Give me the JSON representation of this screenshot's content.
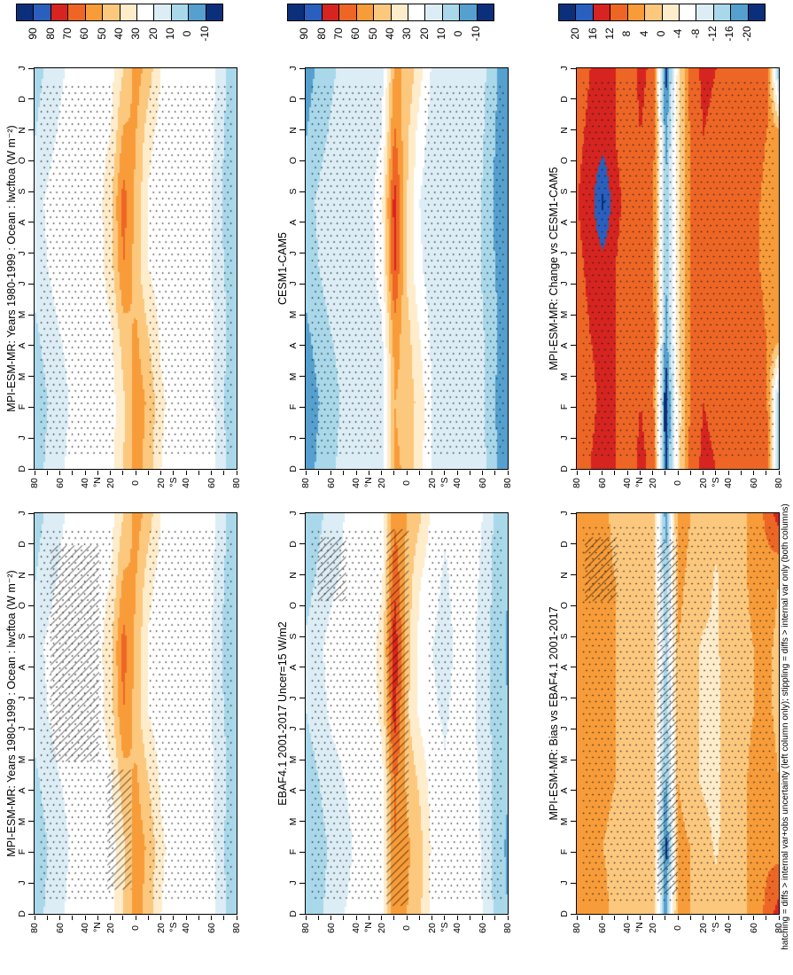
{
  "figure": {
    "caption": "hatching = diffs > internal var+obs uncertainty (left column only); stippling = diffs > internal var only (both columns)",
    "background_color": "#ffffff"
  },
  "axes": {
    "months_bottom_to_top": [
      "D",
      "J",
      "F",
      "M",
      "A",
      "M",
      "J",
      "J",
      "A",
      "S",
      "O",
      "N",
      "D",
      "J"
    ],
    "lat_tick_labels": [
      "80",
      "60",
      "40",
      "20",
      "0",
      "20",
      "40",
      "60",
      "80"
    ],
    "lat_unit_north": "°N",
    "lat_unit_south": "°S"
  },
  "chart_data": {
    "type": "heatmap",
    "description": "Zonal-mean annual cycle (month vs latitude, rotated page) of TOA longwave cloud forcing over ocean; filled contours with stippling/hatching significance overlays",
    "palette_colors": [
      "#0b2f7a",
      "#2a5fbe",
      "#d62420",
      "#ee6625",
      "#f79c39",
      "#fbc87e",
      "#feeccb",
      "#ffffff",
      "#ddedf5",
      "#a9d8ea",
      "#55a0cf",
      "#0b2f7a"
    ],
    "colorbars": [
      {
        "levels": [
          90,
          80,
          70,
          60,
          50,
          40,
          30,
          20,
          10,
          0,
          -10
        ],
        "level_labels": [
          "90",
          "80",
          "70",
          "60",
          "50",
          "40",
          "30",
          "20",
          "10",
          "0",
          "-10"
        ]
      },
      {
        "levels": [
          90,
          80,
          70,
          60,
          50,
          40,
          30,
          20,
          10,
          0,
          -10
        ],
        "level_labels": [
          "90",
          "80",
          "70",
          "60",
          "50",
          "40",
          "30",
          "20",
          "10",
          "0",
          "-10"
        ]
      },
      {
        "levels": [
          20,
          16,
          12,
          8,
          4,
          0,
          -4,
          -8,
          -12,
          -16,
          -20
        ],
        "level_labels": [
          "20",
          "16",
          "12",
          "8",
          "4",
          "0",
          "-4",
          "-8",
          "-12",
          "-16",
          "-20"
        ]
      }
    ],
    "lat_grid_left_to_right_deg": [
      80,
      70,
      60,
      50,
      40,
      30,
      20,
      10,
      0,
      -10,
      -20,
      -30,
      -40,
      -50,
      -60,
      -70,
      -80
    ],
    "panels": [
      {
        "title": "MPI-ESM-MR: Years 1980-1999 : Ocean : lwcftoa (W m⁻²)",
        "column": 0,
        "row": "top",
        "colorbar": 0,
        "values_time_by_lat": [
          [
            6,
            12,
            18,
            24,
            26,
            24,
            26,
            40,
            55,
            45,
            30,
            24,
            26,
            28,
            24,
            12,
            2
          ],
          [
            4,
            10,
            16,
            22,
            25,
            24,
            25,
            38,
            56,
            48,
            32,
            26,
            27,
            28,
            23,
            10,
            0
          ],
          [
            8,
            14,
            20,
            24,
            26,
            25,
            28,
            45,
            52,
            40,
            28,
            24,
            26,
            27,
            22,
            12,
            3
          ],
          [
            14,
            20,
            26,
            28,
            27,
            26,
            35,
            60,
            45,
            30,
            24,
            22,
            25,
            26,
            20,
            10,
            2
          ],
          [
            16,
            22,
            28,
            29,
            27,
            26,
            38,
            65,
            48,
            28,
            22,
            21,
            24,
            26,
            20,
            8,
            1
          ],
          [
            10,
            16,
            22,
            26,
            26,
            25,
            30,
            52,
            50,
            34,
            25,
            22,
            25,
            27,
            22,
            10,
            2
          ],
          [
            6,
            12,
            18,
            24,
            26,
            24,
            26,
            40,
            55,
            45,
            30,
            24,
            26,
            28,
            24,
            12,
            2
          ]
        ],
        "stipple_regions": [
          [
            0.02,
            0.03,
            0.38,
            0.93
          ],
          [
            0.56,
            0.03,
            0.42,
            0.93
          ]
        ],
        "hatch_regions": []
      },
      {
        "title": "MPI-ESM-MR: Years 1980-1999 : Ocean : lwcftoa (W m⁻²)",
        "column": 0,
        "row": "bottom",
        "colorbar": 0,
        "values_time_by_lat": [
          [
            6,
            12,
            18,
            24,
            26,
            24,
            26,
            40,
            55,
            45,
            30,
            24,
            26,
            28,
            24,
            12,
            2
          ],
          [
            4,
            10,
            16,
            22,
            25,
            24,
            25,
            38,
            56,
            48,
            32,
            26,
            27,
            28,
            23,
            10,
            0
          ],
          [
            8,
            14,
            20,
            24,
            26,
            25,
            28,
            45,
            52,
            40,
            28,
            24,
            26,
            27,
            22,
            12,
            3
          ],
          [
            14,
            20,
            26,
            28,
            27,
            26,
            35,
            60,
            45,
            30,
            24,
            22,
            25,
            26,
            20,
            10,
            2
          ],
          [
            16,
            22,
            28,
            29,
            27,
            26,
            38,
            65,
            48,
            28,
            22,
            21,
            24,
            26,
            20,
            8,
            1
          ],
          [
            10,
            16,
            22,
            26,
            26,
            25,
            30,
            52,
            50,
            34,
            25,
            22,
            25,
            27,
            22,
            10,
            2
          ],
          [
            6,
            12,
            18,
            24,
            26,
            24,
            26,
            40,
            55,
            45,
            30,
            24,
            26,
            28,
            24,
            12,
            2
          ]
        ],
        "stipple_regions": [
          [
            0.02,
            0.03,
            0.38,
            0.93
          ],
          [
            0.56,
            0.03,
            0.42,
            0.93
          ]
        ],
        "hatch_regions": [
          [
            0.08,
            0.38,
            0.24,
            0.54
          ],
          [
            0.36,
            0.06,
            0.12,
            0.3
          ]
        ]
      },
      {
        "title": "CESM1-CAM5",
        "column": 1,
        "row": "top",
        "colorbar": 1,
        "values_time_by_lat": [
          [
            -4,
            2,
            8,
            14,
            16,
            14,
            16,
            52,
            48,
            34,
            18,
            13,
            15,
            17,
            13,
            2,
            -8
          ],
          [
            -6,
            0,
            6,
            12,
            15,
            14,
            15,
            50,
            46,
            36,
            20,
            14,
            16,
            17,
            12,
            0,
            -10
          ],
          [
            -2,
            4,
            10,
            14,
            16,
            15,
            18,
            55,
            44,
            30,
            17,
            13,
            15,
            16,
            11,
            2,
            -7
          ],
          [
            4,
            10,
            16,
            18,
            17,
            16,
            25,
            72,
            38,
            22,
            14,
            11,
            14,
            15,
            9,
            0,
            -8
          ],
          [
            6,
            12,
            18,
            19,
            17,
            16,
            28,
            75,
            40,
            20,
            13,
            10,
            13,
            15,
            9,
            -2,
            -9
          ],
          [
            0,
            6,
            12,
            16,
            16,
            15,
            20,
            62,
            42,
            25,
            15,
            11,
            14,
            16,
            11,
            0,
            -8
          ],
          [
            -4,
            2,
            8,
            14,
            16,
            14,
            16,
            52,
            48,
            34,
            18,
            13,
            15,
            17,
            13,
            2,
            -8
          ]
        ],
        "stipple_regions": [
          [
            0.02,
            0.03,
            0.36,
            0.93
          ],
          [
            0.58,
            0.03,
            0.4,
            0.93
          ]
        ],
        "hatch_regions": []
      },
      {
        "title": "EBAF4.1 2001-2017 Uncer=15 W/m2",
        "column": 1,
        "row": "bottom",
        "colorbar": 1,
        "values_time_by_lat": [
          [
            2,
            8,
            14,
            20,
            22,
            21,
            24,
            58,
            50,
            42,
            27,
            21,
            23,
            25,
            20,
            8,
            0
          ],
          [
            0,
            6,
            12,
            18,
            21,
            21,
            23,
            60,
            52,
            44,
            28,
            22,
            24,
            25,
            19,
            6,
            -2
          ],
          [
            4,
            10,
            16,
            20,
            22,
            22,
            26,
            62,
            48,
            38,
            25,
            21,
            23,
            24,
            18,
            8,
            1
          ],
          [
            10,
            16,
            22,
            24,
            23,
            23,
            33,
            75,
            42,
            28,
            21,
            19,
            22,
            23,
            16,
            6,
            0
          ],
          [
            12,
            18,
            24,
            25,
            23,
            23,
            36,
            78,
            44,
            26,
            20,
            18,
            21,
            23,
            16,
            5,
            -1
          ],
          [
            6,
            12,
            18,
            22,
            22,
            22,
            28,
            68,
            46,
            31,
            22,
            19,
            22,
            24,
            18,
            7,
            0
          ],
          [
            2,
            8,
            14,
            20,
            22,
            21,
            24,
            58,
            50,
            42,
            27,
            21,
            23,
            25,
            20,
            8,
            0
          ]
        ],
        "stipple_regions": [
          [
            0.02,
            0.03,
            0.36,
            0.93
          ],
          [
            0.6,
            0.03,
            0.38,
            0.93
          ]
        ],
        "hatch_regions": [
          [
            0.4,
            0.02,
            0.11,
            0.94
          ],
          [
            0.06,
            0.78,
            0.14,
            0.16
          ]
        ]
      },
      {
        "title": "MPI-ESM-MR: Change vs CESM1-CAM5",
        "column": 2,
        "row": "top",
        "colorbar": 2,
        "values_time_by_lat": [
          [
            10,
            12,
            14,
            12,
            10,
            13,
            11,
            -22,
            -2,
            10,
            13,
            12,
            11,
            12,
            11,
            12,
            -17
          ],
          [
            9,
            11,
            13,
            12,
            10,
            12,
            10,
            -24,
            -2,
            9,
            12,
            11,
            10,
            11,
            10,
            10,
            -17
          ],
          [
            10,
            12,
            13,
            12,
            10,
            12,
            10,
            -18,
            -1,
            8,
            12,
            11,
            10,
            11,
            10,
            8,
            6
          ],
          [
            11,
            13,
            14,
            12,
            10,
            11,
            9,
            -16,
            -1,
            8,
            11,
            10,
            10,
            10,
            9,
            7,
            5
          ],
          [
            12,
            14,
            21,
            13,
            11,
            11,
            9,
            -15,
            -1,
            8,
            11,
            10,
            10,
            10,
            9,
            7,
            5
          ],
          [
            11,
            13,
            14,
            12,
            10,
            12,
            10,
            -18,
            -1,
            9,
            12,
            11,
            10,
            11,
            10,
            8,
            6
          ],
          [
            10,
            12,
            14,
            12,
            10,
            13,
            11,
            -22,
            -2,
            10,
            13,
            12,
            11,
            12,
            11,
            12,
            -17
          ]
        ],
        "stipple_regions": [
          [
            0.02,
            0.02,
            0.96,
            0.95
          ]
        ],
        "hatch_regions": []
      },
      {
        "title": "MPI-ESM-MR: Bias vs EBAF4.1 2001-2017",
        "column": 2,
        "row": "bottom",
        "colorbar": 2,
        "values_time_by_lat": [
          [
            6,
            7,
            5,
            3,
            2,
            4,
            3,
            -18,
            6,
            4,
            2,
            3,
            4,
            3,
            5,
            9,
            14
          ],
          [
            5,
            6,
            4,
            3,
            3,
            4,
            2,
            -22,
            5,
            4,
            3,
            -1,
            3,
            3,
            5,
            7,
            6
          ],
          [
            6,
            6,
            5,
            4,
            3,
            4,
            2,
            -17,
            4,
            2,
            -1,
            -2,
            3,
            3,
            5,
            6,
            4
          ],
          [
            7,
            6,
            5,
            4,
            3,
            3,
            2,
            -15,
            3,
            2,
            -1,
            -2,
            3,
            3,
            4,
            5,
            3
          ],
          [
            7,
            6,
            5,
            4,
            3,
            3,
            2,
            -13,
            4,
            2,
            -1,
            -1,
            3,
            3,
            4,
            5,
            3
          ],
          [
            6,
            6,
            5,
            4,
            3,
            4,
            2,
            -16,
            5,
            3,
            3,
            -1,
            3,
            3,
            5,
            6,
            4
          ],
          [
            6,
            7,
            5,
            3,
            2,
            4,
            3,
            -18,
            6,
            4,
            2,
            3,
            4,
            3,
            5,
            9,
            14
          ]
        ],
        "stipple_regions": [
          [
            0.02,
            0.02,
            0.96,
            0.95
          ]
        ],
        "hatch_regions": [
          [
            0.4,
            0.05,
            0.1,
            0.88
          ],
          [
            0.04,
            0.78,
            0.16,
            0.16
          ]
        ]
      }
    ]
  }
}
